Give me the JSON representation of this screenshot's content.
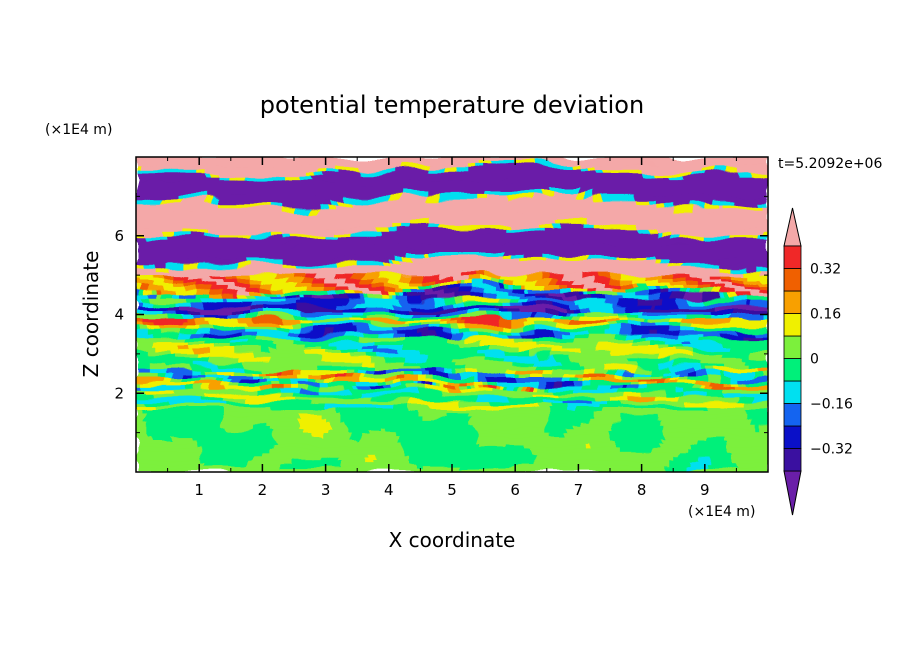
{
  "chart_data": {
    "type": "heatmap",
    "title": "potential temperature deviation",
    "xlabel": "X coordinate",
    "ylabel": "Z coordinate",
    "x_unit": "(×1E4 m)",
    "y_unit": "(×1E4 m)",
    "time_label": "t=5.2092e+06",
    "xlim": [
      0,
      10
    ],
    "ylim": [
      0,
      8
    ],
    "x_ticks": [
      1,
      2,
      3,
      4,
      5,
      6,
      7,
      8,
      9
    ],
    "x_tick_labels": [
      "1",
      "2",
      "3",
      "4",
      "5",
      "6",
      "7",
      "8",
      "9"
    ],
    "y_ticks": [
      2,
      4,
      6
    ],
    "y_tick_labels": [
      "2",
      "4",
      "6"
    ],
    "colorbar": {
      "levels": [
        -0.4,
        -0.32,
        -0.24,
        -0.16,
        -0.08,
        0,
        0.08,
        0.16,
        0.24,
        0.32,
        0.4
      ],
      "colors": [
        "#6a1ea8",
        "#3a10a0",
        "#0a10c8",
        "#1464f0",
        "#00e0f0",
        "#00f07a",
        "#7cf03c",
        "#f0f000",
        "#f8a000",
        "#f06000",
        "#f02828",
        "#f4a8a8"
      ],
      "labels": [
        {
          "value": 0.32,
          "text": "0.32"
        },
        {
          "value": 0.16,
          "text": "0.16"
        },
        {
          "value": 0,
          "text": "0"
        },
        {
          "value": -0.16,
          "text": "−0.16"
        },
        {
          "value": -0.32,
          "text": "−0.32"
        }
      ],
      "extend": "both"
    },
    "regions": {
      "lower_band": {
        "z": [
          0,
          2.0
        ],
        "dominant_values": [
          0.04,
          -0.04
        ]
      },
      "mid_band": {
        "z": [
          2.0,
          4.0
        ],
        "dominant_values": [
          0.04,
          -0.04,
          0.2,
          -0.2
        ]
      },
      "upper_band": {
        "z": [
          4.0,
          8.0
        ],
        "dominant_values": [
          0.44,
          -0.44
        ]
      }
    }
  }
}
